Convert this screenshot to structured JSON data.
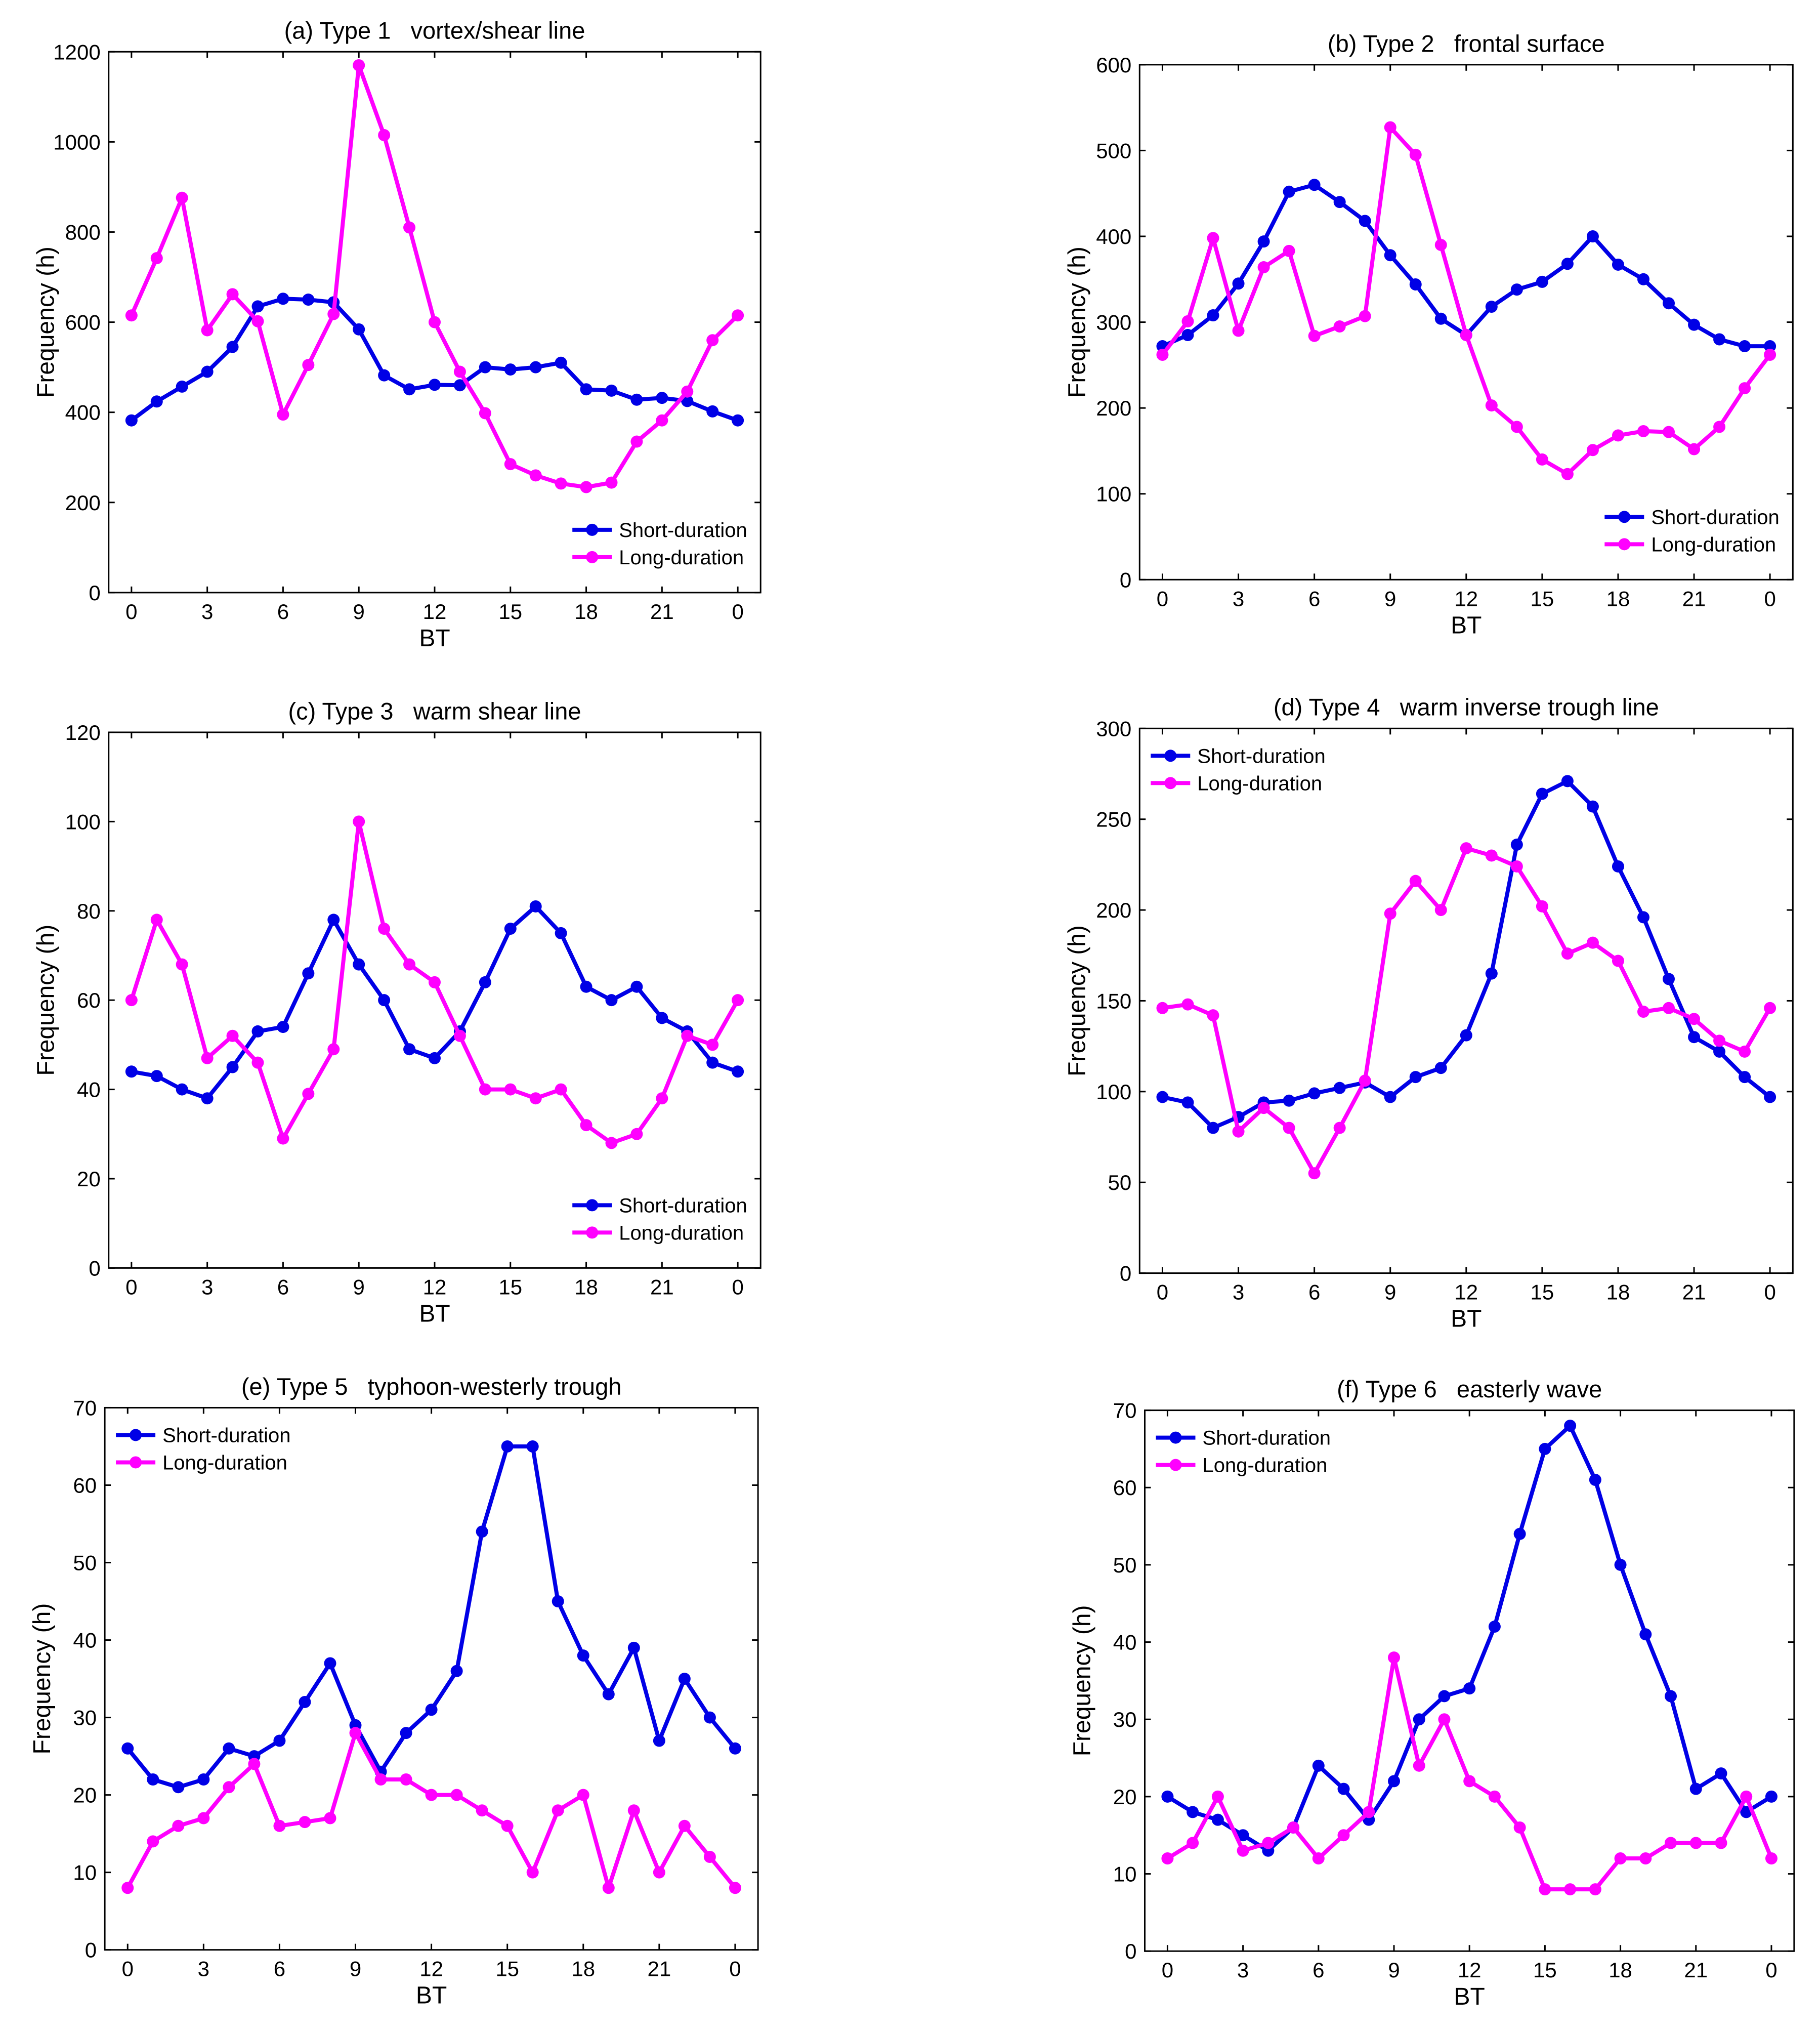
{
  "chart_data": [
    {
      "type": "line",
      "title": "(a) Type 1   vortex/shear line",
      "xlabel": "BT",
      "ylabel": "Frequency (h)",
      "ylim": [
        0,
        1200
      ],
      "yticks": [
        0,
        200,
        400,
        600,
        800,
        1000,
        1200
      ],
      "xtick_labels": [
        "0",
        "3",
        "6",
        "9",
        "12",
        "15",
        "18",
        "21",
        "0"
      ],
      "legend_position": "bottom-right",
      "series": [
        {
          "name": "Short-duration",
          "color": "#0000e6",
          "values": [
            382,
            424,
            457,
            490,
            545,
            635,
            652,
            650,
            644,
            584,
            482,
            451,
            461,
            460,
            500,
            495,
            500,
            510,
            451,
            448,
            428,
            432,
            425,
            402,
            382
          ]
        },
        {
          "name": "Long-duration",
          "color": "#ff00ff",
          "values": [
            615,
            742,
            876,
            582,
            662,
            602,
            395,
            505,
            618,
            1170,
            1015,
            810,
            600,
            490,
            398,
            285,
            260,
            242,
            234,
            244,
            335,
            382,
            446,
            560,
            615
          ]
        }
      ]
    },
    {
      "type": "line",
      "title": "(b) Type 2   frontal surface",
      "xlabel": "BT",
      "ylabel": "Frequency (h)",
      "ylim": [
        0,
        600
      ],
      "yticks": [
        0,
        100,
        200,
        300,
        400,
        500,
        600
      ],
      "xtick_labels": [
        "0",
        "3",
        "6",
        "9",
        "12",
        "15",
        "18",
        "21",
        "0"
      ],
      "legend_position": "bottom-right",
      "series": [
        {
          "name": "Short-duration",
          "color": "#0000e6",
          "values": [
            272,
            285,
            308,
            345,
            394,
            452,
            460,
            440,
            418,
            378,
            344,
            304,
            285,
            318,
            338,
            347,
            368,
            400,
            367,
            350,
            322,
            297,
            280,
            272,
            272
          ]
        },
        {
          "name": "Long-duration",
          "color": "#ff00ff",
          "values": [
            262,
            301,
            398,
            290,
            364,
            383,
            284,
            295,
            307,
            527,
            495,
            390,
            285,
            203,
            178,
            140,
            123,
            151,
            168,
            173,
            172,
            152,
            178,
            223,
            262
          ]
        }
      ]
    },
    {
      "type": "line",
      "title": "(c) Type 3   warm shear line",
      "xlabel": "BT",
      "ylabel": "Frequency (h)",
      "ylim": [
        0,
        120
      ],
      "yticks": [
        0,
        20,
        40,
        60,
        80,
        100,
        120
      ],
      "xtick_labels": [
        "0",
        "3",
        "6",
        "9",
        "12",
        "15",
        "18",
        "21",
        "0"
      ],
      "legend_position": "bottom-right",
      "series": [
        {
          "name": "Short-duration",
          "color": "#0000e6",
          "values": [
            44,
            43,
            40,
            38,
            45,
            53,
            54,
            66,
            78,
            68,
            60,
            49,
            47,
            53,
            64,
            76,
            81,
            75,
            63,
            60,
            63,
            56,
            53,
            46,
            44
          ]
        },
        {
          "name": "Long-duration",
          "color": "#ff00ff",
          "values": [
            60,
            78,
            68,
            47,
            52,
            46,
            29,
            39,
            49,
            100,
            76,
            68,
            64,
            52,
            40,
            40,
            38,
            40,
            32,
            28,
            30,
            38,
            52,
            50,
            60
          ]
        }
      ]
    },
    {
      "type": "line",
      "title": "(d) Type 4   warm inverse trough line",
      "xlabel": "BT",
      "ylabel": "Frequency (h)",
      "ylim": [
        0,
        300
      ],
      "yticks": [
        0,
        50,
        100,
        150,
        200,
        250,
        300
      ],
      "xtick_labels": [
        "0",
        "3",
        "6",
        "9",
        "12",
        "15",
        "18",
        "21",
        "0"
      ],
      "legend_position": "top-left",
      "series": [
        {
          "name": "Short-duration",
          "color": "#0000e6",
          "values": [
            97,
            94,
            80,
            86,
            94,
            95,
            99,
            102,
            105,
            97,
            108,
            113,
            131,
            165,
            236,
            264,
            271,
            257,
            224,
            196,
            162,
            130,
            122,
            108,
            97
          ]
        },
        {
          "name": "Long-duration",
          "color": "#ff00ff",
          "values": [
            146,
            148,
            142,
            78,
            91,
            80,
            55,
            80,
            106,
            198,
            216,
            200,
            234,
            230,
            224,
            202,
            176,
            182,
            172,
            144,
            146,
            140,
            128,
            122,
            146
          ]
        }
      ]
    },
    {
      "type": "line",
      "title": "(e) Type 5   typhoon-westerly trough",
      "xlabel": "BT",
      "ylabel": "Frequency (h)",
      "ylim": [
        0,
        70
      ],
      "yticks": [
        0,
        10,
        20,
        30,
        40,
        50,
        60,
        70
      ],
      "xtick_labels": [
        "0",
        "3",
        "6",
        "9",
        "12",
        "15",
        "18",
        "21",
        "0"
      ],
      "legend_position": "top-left",
      "series": [
        {
          "name": "Short-duration",
          "color": "#0000e6",
          "values": [
            26,
            22,
            21,
            22,
            26,
            25,
            27,
            32,
            37,
            29,
            23,
            28,
            31,
            36,
            54,
            65,
            65,
            45,
            38,
            33,
            39,
            27,
            35,
            30,
            26
          ]
        },
        {
          "name": "Long-duration",
          "color": "#ff00ff",
          "values": [
            8,
            14,
            16,
            17,
            21,
            24,
            16,
            16.5,
            17,
            28,
            22,
            22,
            20,
            20,
            18,
            16,
            10,
            18,
            20,
            8,
            18,
            10,
            16,
            12,
            8
          ]
        }
      ]
    },
    {
      "type": "line",
      "title": "(f) Type 6   easterly wave",
      "xlabel": "BT",
      "ylabel": "Frequency (h)",
      "ylim": [
        0,
        70
      ],
      "yticks": [
        0,
        10,
        20,
        30,
        40,
        50,
        60,
        70
      ],
      "xtick_labels": [
        "0",
        "3",
        "6",
        "9",
        "12",
        "15",
        "18",
        "21",
        "0"
      ],
      "legend_position": "top-left",
      "series": [
        {
          "name": "Short-duration",
          "color": "#0000e6",
          "values": [
            20,
            18,
            17,
            15,
            13,
            16,
            24,
            21,
            17,
            22,
            30,
            33,
            34,
            42,
            54,
            65,
            68,
            61,
            50,
            41,
            33,
            21,
            23,
            18,
            20
          ]
        },
        {
          "name": "Long-duration",
          "color": "#ff00ff",
          "values": [
            12,
            14,
            20,
            13,
            14,
            16,
            12,
            15,
            18,
            38,
            24,
            30,
            22,
            20,
            16,
            8,
            8,
            8,
            12,
            12,
            14,
            14,
            14,
            20,
            12
          ]
        }
      ]
    }
  ]
}
